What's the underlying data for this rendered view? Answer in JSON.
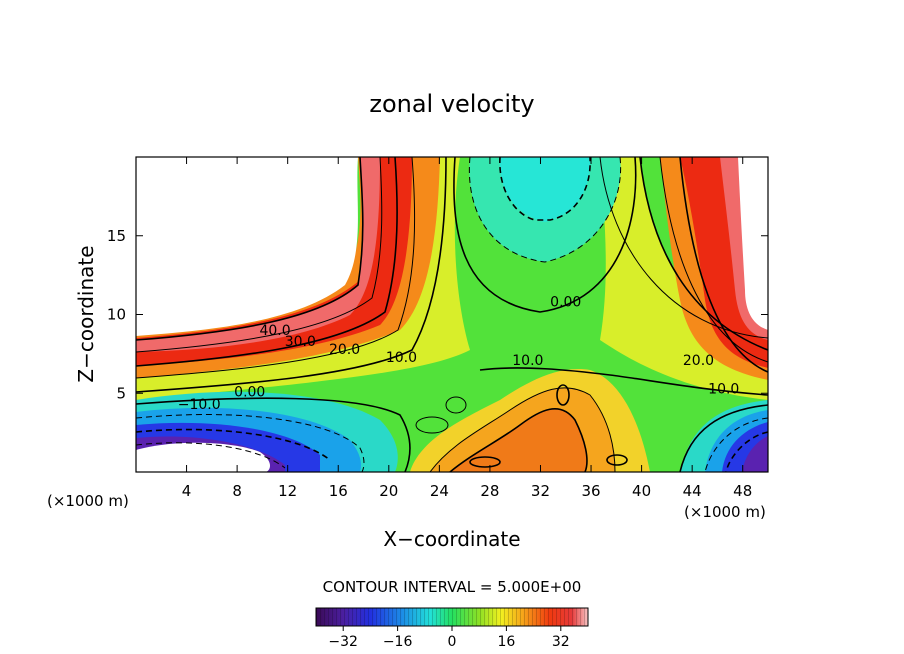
{
  "chart_data": {
    "type": "heatmap",
    "title": "zonal velocity",
    "xlabel": "X−coordinate",
    "ylabel": "Z−coordinate",
    "x_unit_left": "(×1000 m)",
    "x_unit_right": "(×1000 m)",
    "xlim": [
      0,
      50
    ],
    "ylim": [
      0,
      20
    ],
    "xticks": [
      4,
      8,
      12,
      16,
      20,
      24,
      28,
      32,
      36,
      40,
      44,
      48
    ],
    "yticks": [
      5,
      10,
      15
    ],
    "contour_interval_label": "CONTOUR INTERVAL = 5.000E+00",
    "contour_interval": 5.0,
    "color_range": [
      -40,
      40
    ],
    "colorbar_ticks": [
      -32,
      -16,
      0,
      16,
      32
    ],
    "contour_labels": [
      {
        "text": "40.0",
        "x": 11,
        "z": 8.7
      },
      {
        "text": "30.0",
        "x": 13,
        "z": 8.0
      },
      {
        "text": "20.0",
        "x": 16.5,
        "z": 7.5
      },
      {
        "text": "10.0",
        "x": 21,
        "z": 7.0
      },
      {
        "text": "0.00",
        "x": 9,
        "z": 4.8
      },
      {
        "text": "−10.0",
        "x": 5,
        "z": 4.0
      },
      {
        "text": "0.00",
        "x": 34,
        "z": 10.5
      },
      {
        "text": "10.0",
        "x": 31,
        "z": 6.8
      },
      {
        "text": "20.0",
        "x": 44.5,
        "z": 6.8
      },
      {
        "text": "10.0",
        "x": 46.5,
        "z": 5.0
      }
    ]
  }
}
